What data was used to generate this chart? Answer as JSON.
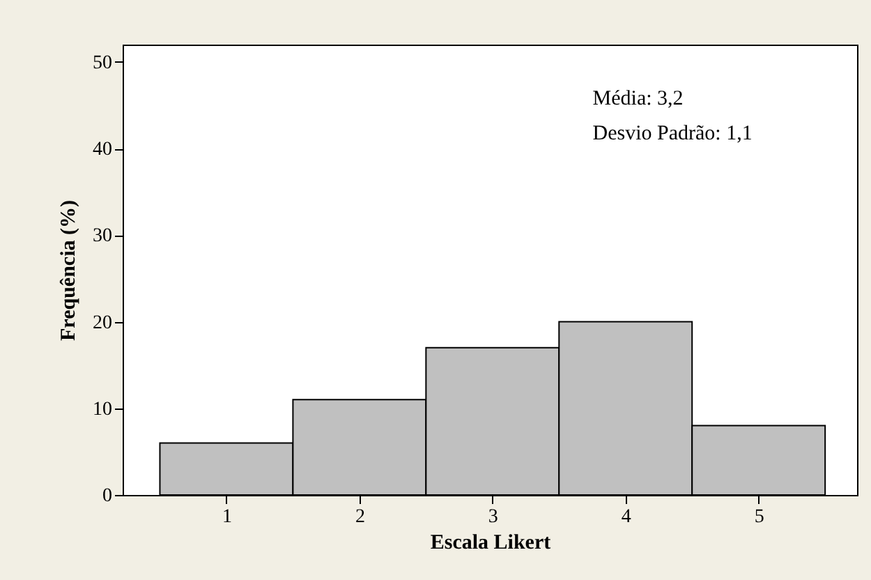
{
  "chart_data": {
    "type": "histogram",
    "xlabel": "Escala Likert",
    "ylabel": "Frequência (%)",
    "annotations": [
      "Média: 3,2",
      "Desvio Padrão: 1,1"
    ],
    "bins": [
      0.5,
      1.5,
      2.5,
      3.5,
      4.5,
      5.5
    ],
    "values": [
      6,
      11,
      17,
      20,
      8
    ],
    "color": "#c0c0c0",
    "xlim": [
      0.22,
      5.74
    ],
    "xticks": [
      1,
      2,
      3,
      4,
      5
    ],
    "ylim": [
      0,
      52
    ],
    "yticks": [
      0,
      10,
      20,
      30,
      40,
      50
    ],
    "grid": false
  }
}
